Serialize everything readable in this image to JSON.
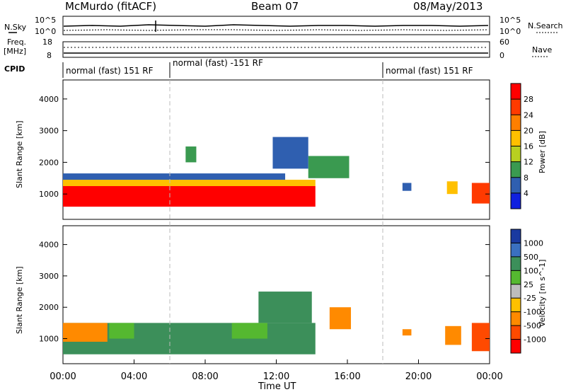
{
  "header": {
    "station": "McMurdo (fitACF)",
    "beam": "Beam 07",
    "date": "08/May/2013"
  },
  "status_panels": {
    "nsky": {
      "left_label": "N.Sky",
      "left_ticks": [
        "10^5",
        "10^0"
      ],
      "right_label": "N.Search",
      "right_ticks": [
        "10^5",
        "10^0"
      ]
    },
    "freq": {
      "left_label_1": "Freq.",
      "left_label_2": "[MHz]",
      "left_ticks": [
        "18",
        "8"
      ],
      "right_label": "Nave",
      "right_ticks": [
        "60",
        "0"
      ]
    },
    "cpid": {
      "label": "CPID",
      "modes": [
        {
          "text": "normal (fast) 151 RF",
          "start_hour": 0.0,
          "end_hour": 6.0
        },
        {
          "text": "normal (fast) -151 RF",
          "start_hour": 6.0,
          "end_hour": 18.0
        },
        {
          "text": "normal (fast) 151 RF",
          "start_hour": 18.0,
          "end_hour": 24.0
        }
      ]
    }
  },
  "chart_data": [
    {
      "type": "heatmap",
      "panel": "power",
      "ylabel": "Slant Range [km]",
      "ylim": [
        200,
        4600
      ],
      "yticks": [
        1000,
        2000,
        3000,
        4000
      ],
      "xlim": [
        0,
        24
      ],
      "colorbar": {
        "label": "Power [dB]",
        "ticks": [
          "28",
          "24",
          "20",
          "16",
          "12",
          "8",
          "4"
        ],
        "colors": [
          "#ff0000",
          "#ff3a00",
          "#ff7f00",
          "#ffc000",
          "#b8d020",
          "#3a9a50",
          "#2f5fb0",
          "#1020e0"
        ]
      },
      "regions": [
        {
          "x0": 0.0,
          "x1": 14.2,
          "y0": 600,
          "y1": 1250,
          "level": 0
        },
        {
          "x0": 0.0,
          "x1": 14.2,
          "y0": 1250,
          "y1": 1450,
          "level": 3
        },
        {
          "x0": 0.0,
          "x1": 12.5,
          "y0": 1450,
          "y1": 1650,
          "level": 6
        },
        {
          "x0": 23.0,
          "x1": 24.0,
          "y0": 700,
          "y1": 1350,
          "level": 1
        },
        {
          "x0": 13.8,
          "x1": 16.1,
          "y0": 1500,
          "y1": 2200,
          "level": 5
        },
        {
          "x0": 19.1,
          "x1": 19.6,
          "y0": 1100,
          "y1": 1350,
          "level": 6
        },
        {
          "x0": 21.6,
          "x1": 22.2,
          "y0": 1000,
          "y1": 1400,
          "level": 3
        },
        {
          "x0": 11.8,
          "x1": 13.8,
          "y0": 1800,
          "y1": 2800,
          "level": 6
        },
        {
          "x0": 6.9,
          "x1": 7.5,
          "y0": 2000,
          "y1": 2500,
          "level": 5
        }
      ]
    },
    {
      "type": "heatmap",
      "panel": "velocity",
      "ylabel": "Slant Range [km]",
      "ylim": [
        200,
        4600
      ],
      "yticks": [
        1000,
        2000,
        3000,
        4000
      ],
      "xlim": [
        0,
        24
      ],
      "xticks": [
        "00:00",
        "04:00",
        "08:00",
        "12:00",
        "16:00",
        "20:00",
        "00:00"
      ],
      "xlabel": "Time UT",
      "colorbar": {
        "label": "Velocity [m s^-1]",
        "ticks": [
          "1000",
          "500",
          "100",
          "25",
          "-25",
          "-100",
          "-500",
          "-1000"
        ],
        "colors": [
          "#1a3aa0",
          "#3a70c0",
          "#3c8f5a",
          "#55b830",
          "#bdbdbd",
          "#ffc000",
          "#ff8a00",
          "#ff4a00",
          "#ff0000"
        ]
      },
      "regions": [
        {
          "x0": 0.0,
          "x1": 14.2,
          "y0": 500,
          "y1": 1500,
          "level": 2
        },
        {
          "x0": 0.0,
          "x1": 2.5,
          "y0": 900,
          "y1": 1500,
          "level": 6
        },
        {
          "x0": 2.6,
          "x1": 4.0,
          "y0": 1000,
          "y1": 1500,
          "level": 3
        },
        {
          "x0": 9.5,
          "x1": 11.5,
          "y0": 1000,
          "y1": 1500,
          "level": 3
        },
        {
          "x0": 11.0,
          "x1": 14.0,
          "y0": 1500,
          "y1": 2500,
          "level": 2
        },
        {
          "x0": 15.0,
          "x1": 16.2,
          "y0": 1300,
          "y1": 2000,
          "level": 6
        },
        {
          "x0": 19.1,
          "x1": 19.6,
          "y0": 1100,
          "y1": 1300,
          "level": 6
        },
        {
          "x0": 21.5,
          "x1": 22.4,
          "y0": 800,
          "y1": 1400,
          "level": 6
        },
        {
          "x0": 23.0,
          "x1": 24.0,
          "y0": 600,
          "y1": 1500,
          "level": 7
        }
      ]
    }
  ]
}
